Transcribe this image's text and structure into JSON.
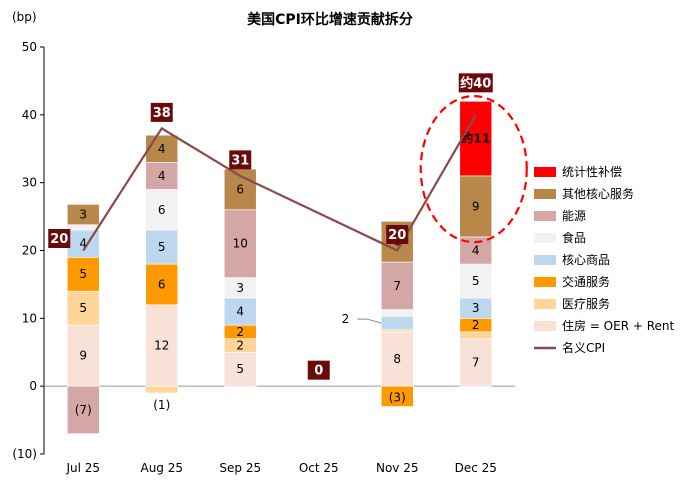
{
  "chart_data": {
    "type": "bar",
    "title": "美国CPI环比增速贡献拆分",
    "ylabel": "(bp)",
    "ylim": [
      -10,
      50
    ],
    "yticks": [
      "(10)",
      "0",
      "10",
      "20",
      "30",
      "40",
      "50"
    ],
    "categories": [
      "Jul 25",
      "Aug 25",
      "Sep 25",
      "Oct 25",
      "Nov 25",
      "Dec 25"
    ],
    "stacked": true,
    "series": [
      {
        "name": "住房 = OER + Rent",
        "color": "#f8e1d6",
        "values": [
          9,
          12,
          5,
          null,
          8,
          7
        ],
        "labels": [
          "9",
          "12",
          "5",
          "",
          "8",
          "7"
        ]
      },
      {
        "name": "医疗服务",
        "color": "#ffd59a",
        "values": [
          5,
          -1,
          2,
          null,
          0.3,
          1
        ],
        "labels": [
          "5",
          "(1)",
          "2",
          "",
          "",
          ""
        ]
      },
      {
        "name": "交通服务",
        "color": "#ff9900",
        "values": [
          5,
          6,
          2,
          null,
          -3,
          2
        ],
        "labels": [
          "5",
          "6",
          "2",
          "",
          "(3)",
          "2"
        ]
      },
      {
        "name": "核心商品",
        "color": "#bdd7ee",
        "values": [
          4,
          5,
          4,
          null,
          2,
          3
        ],
        "labels": [
          "4",
          "5",
          "4",
          "",
          "2",
          "3"
        ]
      },
      {
        "name": "食品",
        "color": "#f2f2f2",
        "values": [
          0.8,
          6,
          3,
          null,
          1,
          5
        ],
        "labels": [
          "",
          "6",
          "3",
          "",
          "",
          "5"
        ]
      },
      {
        "name": "能源",
        "color": "#d5a6a6",
        "values": [
          -7,
          4,
          10,
          null,
          7,
          4
        ],
        "labels": [
          "(7)",
          "4",
          "10",
          "",
          "7",
          "4"
        ]
      },
      {
        "name": "其他核心服务",
        "color": "#b8884a",
        "values": [
          3,
          4,
          6,
          null,
          6,
          9
        ],
        "labels": [
          "3",
          "4",
          "6",
          "",
          "6",
          "9"
        ]
      },
      {
        "name": "统计性补偿",
        "color": "#ff0000",
        "values": [
          null,
          null,
          null,
          null,
          null,
          11
        ],
        "labels": [
          "",
          "",
          "",
          "",
          "",
          "约11"
        ]
      }
    ],
    "line": {
      "name": "名义CPI",
      "color": "#8b4a4a",
      "values": [
        20,
        38,
        31,
        null,
        20,
        40
      ],
      "labels": [
        "20",
        "38",
        "31",
        "0",
        "20",
        "约40"
      ]
    },
    "legend": "right",
    "legend_order": [
      "统计性补偿",
      "其他核心服务",
      "能源",
      "食品",
      "核心商品",
      "交通服务",
      "医疗服务",
      "住房 = OER + Rent",
      "名义CPI"
    ],
    "grid": false,
    "colors": {
      "label_box": "#6b0a0a",
      "negative_label": "#e00000",
      "highlight_ring": "#ff0000"
    }
  }
}
